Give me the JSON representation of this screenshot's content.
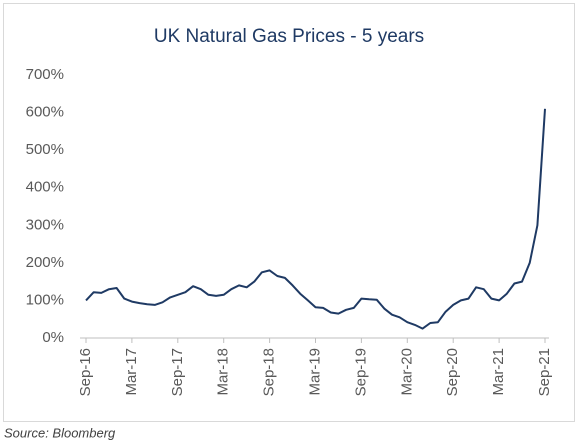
{
  "chart_data": {
    "type": "line",
    "title": "UK Natural Gas Prices - 5 years",
    "source": "Source: Bloomberg",
    "categories": [
      "Sep-16",
      null,
      null,
      null,
      null,
      null,
      "Mar-17",
      null,
      null,
      null,
      null,
      null,
      "Sep-17",
      null,
      null,
      null,
      null,
      null,
      "Mar-18",
      null,
      null,
      null,
      null,
      null,
      "Sep-18",
      null,
      null,
      null,
      null,
      null,
      "Mar-19",
      null,
      null,
      null,
      null,
      null,
      "Sep-19",
      null,
      null,
      null,
      null,
      null,
      "Mar-20",
      null,
      null,
      null,
      null,
      null,
      "Sep-20",
      null,
      null,
      null,
      null,
      null,
      "Mar-21",
      null,
      null,
      null,
      null,
      null,
      "Sep-21"
    ],
    "series": [
      {
        "name": "UK Natural Gas",
        "color": "#1f3a64",
        "values": [
          100,
          122,
          120,
          130,
          133,
          105,
          97,
          93,
          90,
          88,
          95,
          108,
          115,
          122,
          138,
          130,
          115,
          112,
          115,
          130,
          140,
          135,
          150,
          175,
          180,
          165,
          160,
          140,
          118,
          100,
          82,
          80,
          68,
          65,
          75,
          80,
          105,
          103,
          102,
          78,
          62,
          55,
          42,
          35,
          25,
          40,
          42,
          70,
          88,
          100,
          105,
          135,
          130,
          105,
          100,
          118,
          145,
          150,
          200,
          300,
          610
        ]
      }
    ],
    "ylim": [
      0,
      700
    ],
    "yticks": [
      {
        "value": 0,
        "label": "0%"
      },
      {
        "value": 100,
        "label": "100%"
      },
      {
        "value": 200,
        "label": "200%"
      },
      {
        "value": 300,
        "label": "300%"
      },
      {
        "value": 400,
        "label": "400%"
      },
      {
        "value": 500,
        "label": "500%"
      },
      {
        "value": 600,
        "label": "600%"
      },
      {
        "value": 700,
        "label": "700%"
      }
    ],
    "grid": false
  }
}
